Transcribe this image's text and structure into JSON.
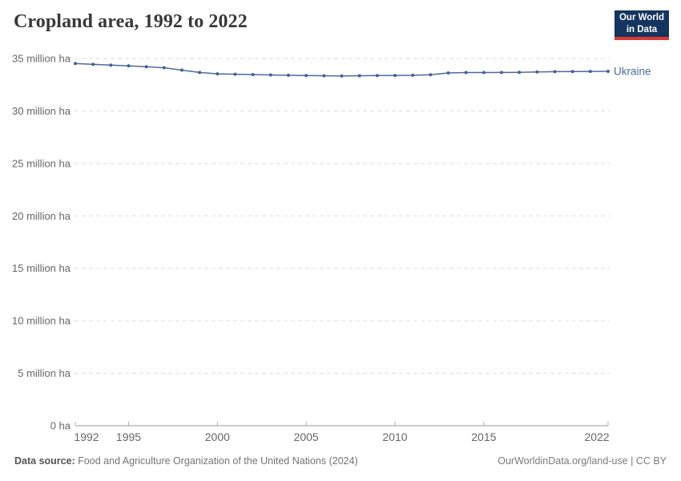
{
  "header": {
    "title": "Cropland area, 1992 to 2022"
  },
  "logo": {
    "line1": "Our World",
    "line2": "in Data",
    "bg_color": "#15355e",
    "bar_color": "#d93a34"
  },
  "chart_data": {
    "type": "line",
    "title": "Cropland area, 1992 to 2022",
    "xlabel": "",
    "ylabel": "",
    "unit": "million ha",
    "xlim": [
      1992,
      2022
    ],
    "ylim": [
      0,
      35
    ],
    "grid": "horizontal-dashed",
    "legend_position": "end-of-line-label",
    "x": [
      1992,
      1993,
      1994,
      1995,
      1996,
      1997,
      1998,
      1999,
      2000,
      2001,
      2002,
      2003,
      2004,
      2005,
      2006,
      2007,
      2008,
      2009,
      2010,
      2011,
      2012,
      2013,
      2014,
      2015,
      2016,
      2017,
      2018,
      2019,
      2020,
      2021,
      2022
    ],
    "series": [
      {
        "name": "Ukraine",
        "values": [
          34.52,
          34.45,
          34.37,
          34.3,
          34.22,
          34.12,
          33.89,
          33.67,
          33.54,
          33.5,
          33.47,
          33.43,
          33.4,
          33.38,
          33.36,
          33.34,
          33.36,
          33.38,
          33.39,
          33.4,
          33.45,
          33.62,
          33.66,
          33.66,
          33.67,
          33.68,
          33.72,
          33.75,
          33.76,
          33.77,
          33.78
        ]
      }
    ],
    "yticks": [
      {
        "value": 0,
        "label": "0 ha"
      },
      {
        "value": 5,
        "label": "5 million ha"
      },
      {
        "value": 10,
        "label": "10 million ha"
      },
      {
        "value": 15,
        "label": "15 million ha"
      },
      {
        "value": 20,
        "label": "20 million ha"
      },
      {
        "value": 25,
        "label": "25 million ha"
      },
      {
        "value": 30,
        "label": "30 million ha"
      },
      {
        "value": 35,
        "label": "35 million ha"
      }
    ],
    "xticks": [
      1992,
      1995,
      2000,
      2005,
      2010,
      2015,
      2022
    ],
    "colors": {
      "line": "#4c6a9c",
      "point": "#42619b",
      "grid": "#dddddd",
      "axis": "#999999",
      "tick": "#b0b0b0",
      "tick_label": "#666666",
      "entity_label": "#4c6a9c"
    }
  },
  "footer": {
    "source_label": "Data source:",
    "source_text": " Food and Agriculture Organization of the United Nations (2024)",
    "link_text": "OurWorldinData.org/land-use | CC BY"
  }
}
